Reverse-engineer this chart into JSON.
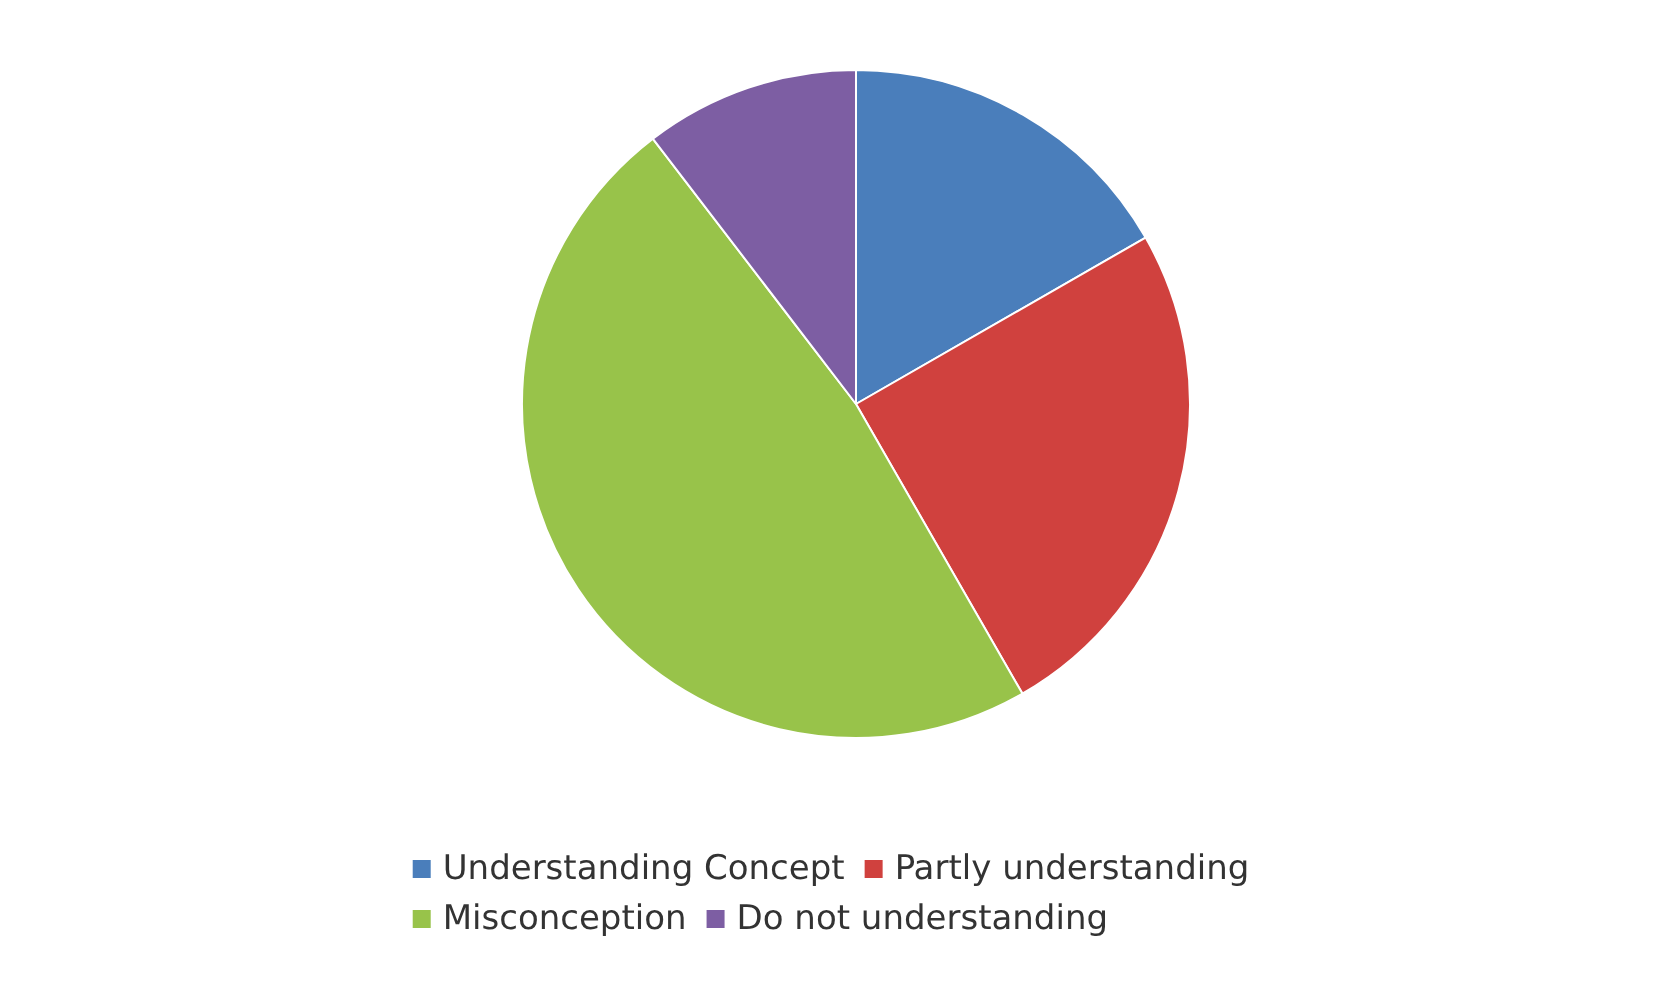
{
  "chart_data": {
    "type": "pie",
    "categories": [
      "Understanding Concept",
      "Partly understanding",
      "Misconception",
      "Do not understanding"
    ],
    "values": [
      16.7,
      25,
      47.9,
      10.4
    ],
    "colors": [
      "#4a7ebb",
      "#d0413e",
      "#98c34a",
      "#7d5ea3"
    ],
    "legend": "bottom"
  }
}
